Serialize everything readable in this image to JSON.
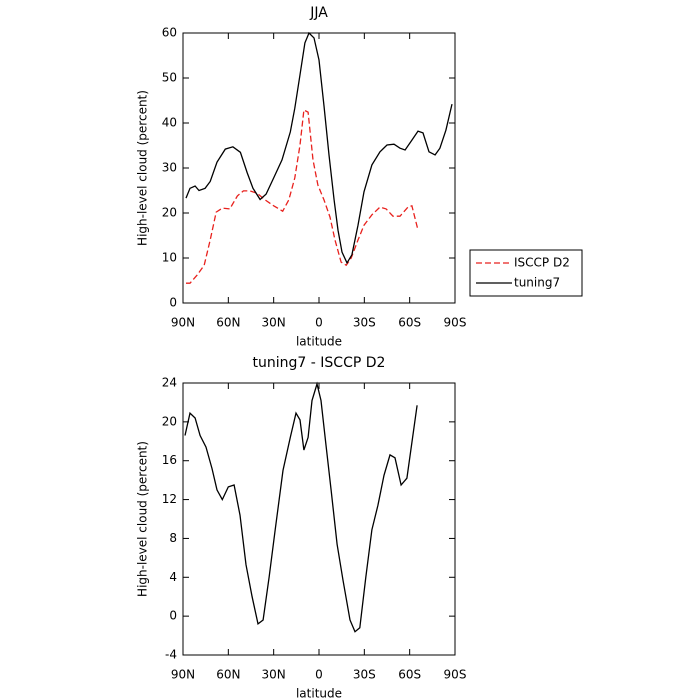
{
  "chart_data": [
    {
      "type": "line",
      "title": "JJA",
      "x_label": "latitude",
      "y_label": "High-level cloud (percent)",
      "xlim": [
        90,
        -90
      ],
      "xticks": [
        {
          "value": 90,
          "label": "90N"
        },
        {
          "value": 60,
          "label": "60N"
        },
        {
          "value": 30,
          "label": "30N"
        },
        0,
        {
          "value": -30,
          "label": "30S"
        },
        {
          "value": -60,
          "label": "60S"
        },
        {
          "value": -90,
          "label": "90S"
        }
      ],
      "ylim": [
        0,
        60
      ],
      "yticks": [
        0,
        10,
        20,
        30,
        40,
        50,
        60
      ],
      "legend": "right",
      "series": [
        {
          "name": "ISCCP D2",
          "color": "#e8211d",
          "line_style": "dashed",
          "x": [
            88,
            85.4,
            80.7,
            76,
            72,
            68,
            64,
            59,
            54,
            50,
            45.7,
            41,
            35.7,
            30,
            24,
            20,
            16,
            12.6,
            10,
            7.2,
            4,
            0.7,
            -3.3,
            -7.3,
            -10.6,
            -14.6,
            -18,
            -21.3,
            -25.8,
            -29.8,
            -35,
            -40.4,
            -44.4,
            -49,
            -53.6,
            -58.9,
            -61.5,
            -65.5
          ],
          "values": [
            4.4,
            4.4,
            6.2,
            8.4,
            14,
            20.2,
            21.1,
            20.9,
            23.8,
            24.9,
            24.9,
            24.4,
            22.9,
            21.6,
            20.4,
            22.9,
            27.8,
            35.1,
            42.9,
            42.4,
            31.8,
            26.2,
            22.9,
            19.1,
            14,
            9.1,
            8.4,
            10,
            14,
            17.3,
            19.6,
            21.3,
            20.9,
            19.3,
            19.3,
            21.3,
            21.6,
            16.2
          ]
        },
        {
          "name": "tuning7",
          "color": "#000000",
          "line_style": "solid",
          "x": [
            88,
            85.4,
            82,
            79.4,
            75.4,
            72,
            67.5,
            62,
            57,
            52,
            47.6,
            43.7,
            39,
            35,
            30,
            24.5,
            19,
            16,
            12.6,
            9.3,
            6.6,
            3.3,
            0,
            -3.3,
            -6.6,
            -10,
            -12.6,
            -15.2,
            -18.5,
            -21.8,
            -25.8,
            -29.8,
            -35,
            -40.4,
            -45,
            -49.6,
            -53.6,
            -57,
            -61.5,
            -65.5,
            -68.8,
            -72.8,
            -76.8,
            -80,
            -84,
            -88
          ],
          "values": [
            23.3,
            25.5,
            26,
            25,
            25.5,
            27,
            31.3,
            34.2,
            34.7,
            33.5,
            29,
            25.5,
            23,
            24.2,
            27.8,
            31.8,
            38,
            43.3,
            50.7,
            57.8,
            60,
            58.9,
            54,
            43.8,
            32.9,
            22.9,
            16.2,
            11.3,
            8.9,
            10.7,
            17.3,
            24.7,
            30.7,
            33.6,
            35.1,
            35.3,
            34.4,
            34,
            36.2,
            38.2,
            37.8,
            33.6,
            32.9,
            34.4,
            38.4,
            44.2
          ]
        }
      ]
    },
    {
      "type": "line",
      "title": "tuning7 - ISCCP D2",
      "x_label": "latitude",
      "y_label": "High-level cloud (percent)",
      "xlim": [
        90,
        -90
      ],
      "xticks": [
        {
          "value": 90,
          "label": "90N"
        },
        {
          "value": 60,
          "label": "60N"
        },
        {
          "value": 30,
          "label": "30N"
        },
        0,
        {
          "value": -30,
          "label": "30S"
        },
        {
          "value": -60,
          "label": "60S"
        },
        {
          "value": -90,
          "label": "90S"
        }
      ],
      "ylim": [
        -4,
        24
      ],
      "yticks": [
        -4,
        0,
        4,
        8,
        12,
        16,
        20,
        24
      ],
      "series": [
        {
          "color": "#000000",
          "line_style": "solid",
          "x": [
            88.7,
            85.4,
            82,
            78.7,
            74.8,
            70.8,
            67.5,
            64,
            60,
            56.2,
            52.3,
            48.3,
            44.3,
            40.4,
            37,
            33,
            29,
            23.8,
            19,
            15.2,
            12.6,
            10,
            7.2,
            4.6,
            1.3,
            -1.3,
            -4.6,
            -8,
            -12,
            -15.9,
            -20.5,
            -23.8,
            -27,
            -31,
            -35,
            -39,
            -43,
            -47,
            -50.3,
            -54.3,
            -58.2,
            -64.9
          ],
          "values": [
            18.6,
            20.9,
            20.4,
            18.6,
            17.4,
            15.2,
            13,
            12,
            13.3,
            13.5,
            10.4,
            5.3,
            2,
            -0.8,
            -0.4,
            4,
            8.9,
            15,
            18.4,
            20.9,
            20.2,
            17.1,
            18.4,
            22.2,
            23.9,
            22.2,
            17.6,
            13,
            7.4,
            3.7,
            -0.4,
            -1.6,
            -1.2,
            4,
            8.9,
            11.4,
            14.5,
            16.6,
            16.3,
            13.5,
            14.2,
            21.7
          ]
        }
      ]
    }
  ]
}
